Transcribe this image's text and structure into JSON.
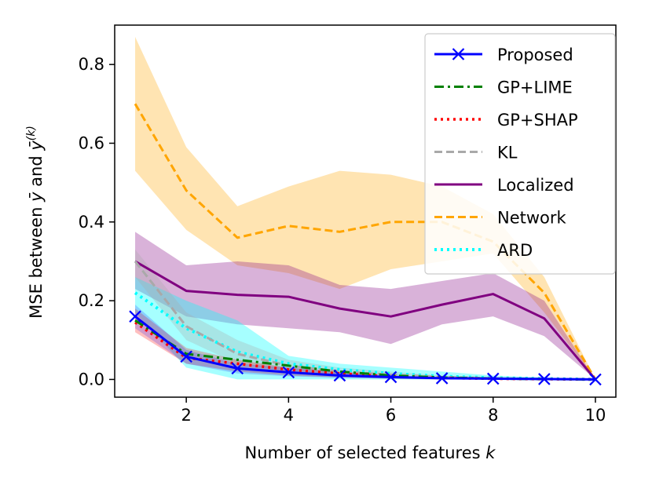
{
  "chart_data": {
    "type": "line",
    "title": "",
    "xlabel_text": "Number of selected features ",
    "xlabel_var": "k",
    "ylabel": {
      "prefix": "MSE between ",
      "var1": "ȳ",
      "mid": " and ",
      "var2": "ȳ",
      "sup": "(k)"
    },
    "xlim": [
      0.6,
      10.4
    ],
    "ylim": [
      -0.045,
      0.9
    ],
    "xticks": [
      2,
      4,
      6,
      8,
      10
    ],
    "yticks": [
      0.0,
      0.2,
      0.4,
      0.6,
      0.8
    ],
    "ytick_labels": [
      "0.0",
      "0.2",
      "0.4",
      "0.6",
      "0.8"
    ],
    "grid": false,
    "legend_position": "top-right",
    "x": [
      1,
      2,
      3,
      4,
      5,
      6,
      7,
      8,
      9,
      10
    ],
    "bands": [
      {
        "name": "Network band",
        "color": "#FFA500",
        "opacity": 0.3,
        "lower": [
          0.53,
          0.38,
          0.29,
          0.27,
          0.23,
          0.28,
          0.3,
          0.32,
          0.17,
          0.0
        ],
        "upper": [
          0.87,
          0.59,
          0.44,
          0.49,
          0.53,
          0.52,
          0.49,
          0.42,
          0.26,
          0.0
        ]
      },
      {
        "name": "Localized band",
        "color": "#800080",
        "opacity": 0.3,
        "lower": [
          0.23,
          0.16,
          0.14,
          0.13,
          0.12,
          0.09,
          0.14,
          0.16,
          0.11,
          0.0
        ],
        "upper": [
          0.375,
          0.29,
          0.3,
          0.29,
          0.24,
          0.23,
          0.25,
          0.27,
          0.2,
          0.0
        ]
      },
      {
        "name": "ARD band",
        "color": "#00FFFF",
        "opacity": 0.35,
        "lower": [
          0.17,
          0.03,
          0.0,
          0.0,
          0.0,
          0.0,
          0.0,
          0.0,
          0.0,
          0.0
        ],
        "upper": [
          0.26,
          0.2,
          0.15,
          0.06,
          0.04,
          0.03,
          0.02,
          0.01,
          0.005,
          0.0
        ]
      },
      {
        "name": "KL band",
        "color": "#A9A9A9",
        "opacity": 0.3,
        "lower": [
          0.26,
          0.1,
          0.04,
          0.02,
          0.01,
          0.005,
          0.0,
          0.0,
          0.0,
          0.0
        ],
        "upper": [
          0.33,
          0.17,
          0.1,
          0.05,
          0.03,
          0.02,
          0.01,
          0.005,
          0.003,
          0.0
        ]
      },
      {
        "name": "GP+SHAP band",
        "color": "#FF0000",
        "opacity": 0.25,
        "lower": [
          0.12,
          0.04,
          0.02,
          0.01,
          0.005,
          0.002,
          0.0,
          0.0,
          0.0,
          0.0
        ],
        "upper": [
          0.18,
          0.08,
          0.05,
          0.03,
          0.02,
          0.01,
          0.005,
          0.002,
          0.001,
          0.0
        ]
      },
      {
        "name": "Proposed band",
        "color": "#0000FF",
        "opacity": 0.18,
        "lower": [
          0.13,
          0.04,
          0.015,
          0.008,
          0.004,
          0.002,
          0.0,
          0.0,
          0.0,
          0.0
        ],
        "upper": [
          0.19,
          0.075,
          0.04,
          0.03,
          0.02,
          0.01,
          0.006,
          0.003,
          0.001,
          0.0
        ]
      }
    ],
    "series": [
      {
        "name": "Network",
        "color": "#FFA500",
        "dash": "10,5",
        "width": 3,
        "marker": "none",
        "values": [
          0.7,
          0.48,
          0.36,
          0.39,
          0.375,
          0.4,
          0.4,
          0.35,
          0.22,
          0.0
        ]
      },
      {
        "name": "Localized",
        "color": "#800080",
        "dash": "",
        "width": 3,
        "marker": "none",
        "values": [
          0.3,
          0.225,
          0.215,
          0.21,
          0.18,
          0.16,
          0.19,
          0.217,
          0.155,
          0.0
        ]
      },
      {
        "name": "ARD",
        "color": "#00FFFF",
        "dash": "3,5",
        "width": 4,
        "marker": "none",
        "values": [
          0.22,
          0.13,
          0.07,
          0.04,
          0.025,
          0.015,
          0.008,
          0.004,
          0.002,
          0.0
        ]
      },
      {
        "name": "KL",
        "color": "#A9A9A9",
        "dash": "10,5",
        "width": 3,
        "marker": "none",
        "values": [
          0.3,
          0.135,
          0.065,
          0.035,
          0.02,
          0.012,
          0.006,
          0.003,
          0.001,
          0.0
        ]
      },
      {
        "name": "GP+SHAP",
        "color": "#FF0000",
        "dash": "3,5",
        "width": 3.5,
        "marker": "none",
        "values": [
          0.145,
          0.055,
          0.04,
          0.025,
          0.015,
          0.008,
          0.004,
          0.002,
          0.001,
          0.0
        ]
      },
      {
        "name": "GP+LIME",
        "color": "#008000",
        "dash": "12,5,3,5",
        "width": 3,
        "marker": "none",
        "values": [
          0.15,
          0.065,
          0.05,
          0.035,
          0.02,
          0.01,
          0.005,
          0.002,
          0.001,
          0.0
        ]
      },
      {
        "name": "Proposed",
        "color": "#0000FF",
        "dash": "",
        "width": 3,
        "marker": "x",
        "values": [
          0.16,
          0.058,
          0.028,
          0.018,
          0.01,
          0.006,
          0.003,
          0.002,
          0.001,
          0.0
        ]
      }
    ],
    "legend": [
      {
        "name": "Proposed",
        "color": "#0000FF",
        "dash": "",
        "width": 3,
        "marker": "x"
      },
      {
        "name": "GP+LIME",
        "color": "#008000",
        "dash": "12,5,3,5",
        "width": 3,
        "marker": "none"
      },
      {
        "name": "GP+SHAP",
        "color": "#FF0000",
        "dash": "3,5",
        "width": 3.5,
        "marker": "none"
      },
      {
        "name": "KL",
        "color": "#A9A9A9",
        "dash": "10,5",
        "width": 3,
        "marker": "none"
      },
      {
        "name": "Localized",
        "color": "#800080",
        "dash": "",
        "width": 3,
        "marker": "none"
      },
      {
        "name": "Network",
        "color": "#FFA500",
        "dash": "10,5",
        "width": 3,
        "marker": "none"
      },
      {
        "name": "ARD",
        "color": "#00FFFF",
        "dash": "3,5",
        "width": 4,
        "marker": "none"
      }
    ]
  }
}
